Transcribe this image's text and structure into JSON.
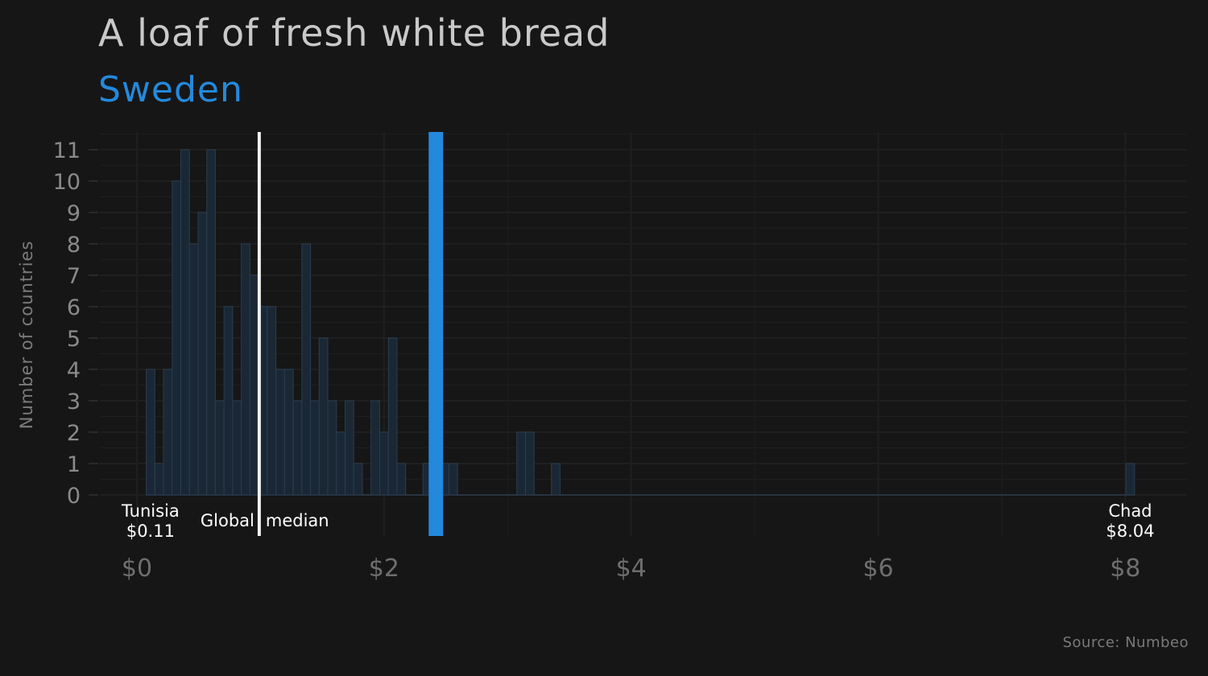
{
  "chart_data": {
    "type": "bar",
    "title": "A loaf of fresh white bread",
    "subtitle": "Sweden",
    "ylabel": "Number of countries",
    "xlabel": "",
    "source": "Source: Numbeo",
    "xlim": [
      -0.3,
      8.5
    ],
    "ylim": [
      0,
      11.8
    ],
    "bin_width": 0.07,
    "x_ticks": [
      0,
      2,
      4,
      6,
      8
    ],
    "x_tick_labels": [
      "$0",
      "$2",
      "$4",
      "$6",
      "$8"
    ],
    "y_ticks": [
      0,
      1,
      2,
      3,
      4,
      5,
      6,
      7,
      8,
      9,
      10,
      11
    ],
    "bins": [
      {
        "x": 0.11,
        "count": 4
      },
      {
        "x": 0.18,
        "count": 1
      },
      {
        "x": 0.25,
        "count": 4
      },
      {
        "x": 0.32,
        "count": 10
      },
      {
        "x": 0.39,
        "count": 11
      },
      {
        "x": 0.46,
        "count": 8
      },
      {
        "x": 0.53,
        "count": 9
      },
      {
        "x": 0.6,
        "count": 11
      },
      {
        "x": 0.67,
        "count": 3
      },
      {
        "x": 0.74,
        "count": 6
      },
      {
        "x": 0.81,
        "count": 3
      },
      {
        "x": 0.88,
        "count": 8
      },
      {
        "x": 0.95,
        "count": 7
      },
      {
        "x": 1.02,
        "count": 6
      },
      {
        "x": 1.09,
        "count": 6
      },
      {
        "x": 1.16,
        "count": 4
      },
      {
        "x": 1.23,
        "count": 4
      },
      {
        "x": 1.3,
        "count": 3
      },
      {
        "x": 1.37,
        "count": 8
      },
      {
        "x": 1.44,
        "count": 3
      },
      {
        "x": 1.51,
        "count": 5
      },
      {
        "x": 1.58,
        "count": 3
      },
      {
        "x": 1.65,
        "count": 2
      },
      {
        "x": 1.72,
        "count": 3
      },
      {
        "x": 1.79,
        "count": 1
      },
      {
        "x": 1.86,
        "count": 0
      },
      {
        "x": 1.93,
        "count": 3
      },
      {
        "x": 2.0,
        "count": 2
      },
      {
        "x": 2.07,
        "count": 5
      },
      {
        "x": 2.14,
        "count": 1
      },
      {
        "x": 2.21,
        "count": 0
      },
      {
        "x": 2.28,
        "count": 0
      },
      {
        "x": 2.35,
        "count": 1
      },
      {
        "x": 2.42,
        "count": 2
      },
      {
        "x": 2.49,
        "count": 1
      },
      {
        "x": 2.56,
        "count": 1
      },
      {
        "x": 3.11,
        "count": 2
      },
      {
        "x": 3.18,
        "count": 2
      },
      {
        "x": 3.39,
        "count": 1
      },
      {
        "x": 8.04,
        "count": 1
      }
    ],
    "highlight": {
      "name": "Sweden",
      "x": 2.42,
      "color": "#2489dc"
    },
    "median": {
      "x": 0.99,
      "label_left": "Global",
      "label_right": "median"
    },
    "annotations": [
      {
        "country": "Tunisia",
        "value": "$0.11",
        "x": 0.11
      },
      {
        "country": "Chad",
        "value": "$8.04",
        "x": 8.04
      }
    ]
  },
  "colors": {
    "background": "#161616",
    "bar_fill": "#1a2836",
    "bar_stroke": "#2b3c4d",
    "grid": "#1f1f1f",
    "highlight": "#2489dc",
    "median_line": "#f2f2f2"
  }
}
